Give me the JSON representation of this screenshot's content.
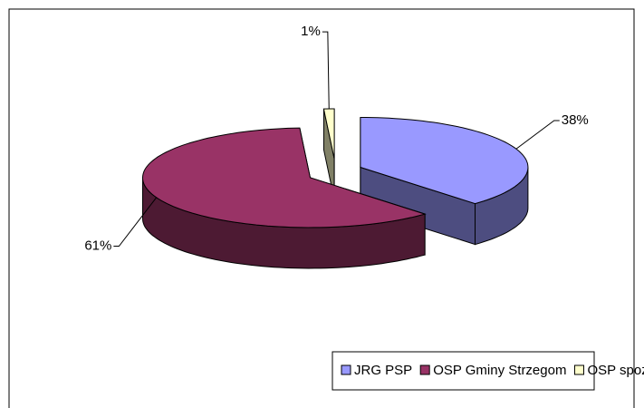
{
  "chart_data": {
    "type": "pie3d",
    "categories": [
      "JRG PSP",
      "OSP Gminy Strzegom",
      "OSP spoza gminy"
    ],
    "values": [
      38,
      61,
      1
    ],
    "value_labels": [
      "38%",
      "61%",
      "1%"
    ],
    "colors": [
      "#9999ff",
      "#993366",
      "#ffffcc"
    ],
    "legend": "bottom"
  }
}
